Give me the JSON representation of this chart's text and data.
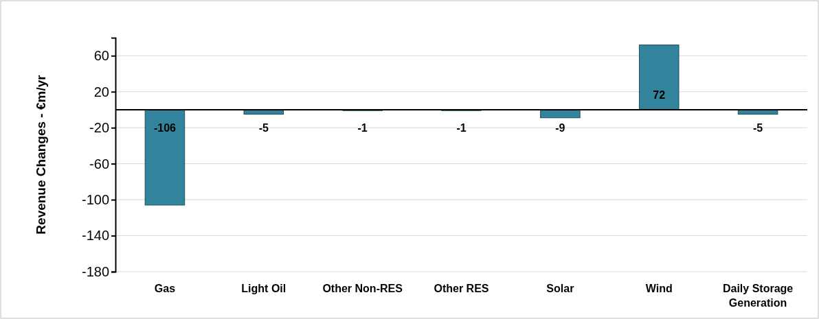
{
  "chart_data": {
    "type": "bar",
    "ylabel": "Revenue Changes - €m/yr",
    "categories": [
      "Gas",
      "Light Oil",
      "Other Non-RES",
      "Other RES",
      "Solar",
      "Wind",
      "Daily Storage Generation"
    ],
    "values": [
      -106,
      -5,
      -1,
      -1,
      -9,
      72,
      -5
    ],
    "color": "#31849b",
    "ylim": [
      -180,
      80
    ],
    "yticks": [
      -180,
      -140,
      -100,
      -60,
      -20,
      20,
      60
    ],
    "grid": "y",
    "data_labels": true
  }
}
